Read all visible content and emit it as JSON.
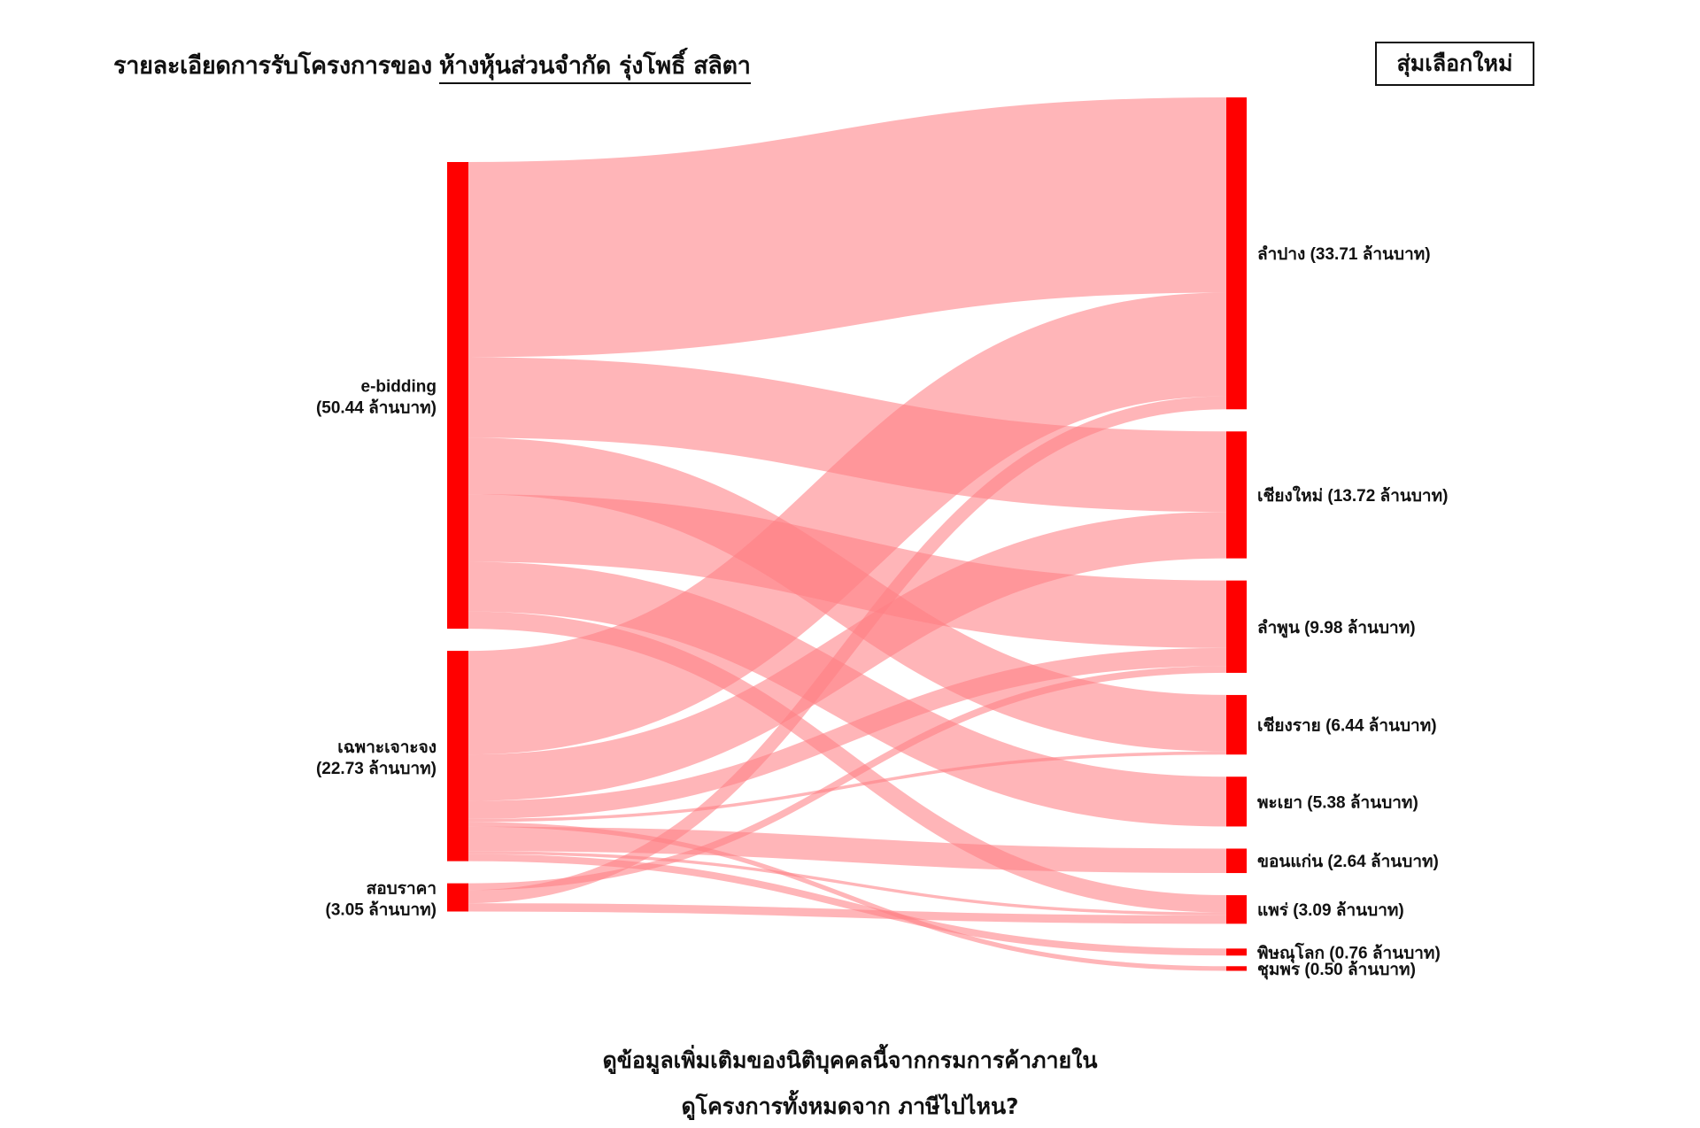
{
  "header": {
    "title_prefix": "รายละเอียดการรับโครงการของ",
    "company_name": "ห้างหุ้นส่วนจำกัด รุ่งโพธิ์ สลิตา",
    "shuffle_button": "สุ่มเลือกใหม่"
  },
  "footer": {
    "link_dbd": "ดูข้อมูลเพิ่มเติมของนิติบุคคลนี้จากกรมการค้าภายใน",
    "link_projects": "ดูโครงการทั้งหมดจาก ภาษีไปไหน?"
  },
  "colors": {
    "node": "#ff0000",
    "link": "#ff7f84"
  },
  "chart_data": {
    "type": "sankey",
    "unit": "ล้านบาท",
    "sources": [
      {
        "id": "ebid",
        "name": "e-bidding",
        "value_label": "(50.44 ล้านบาท)",
        "value": 50.44
      },
      {
        "id": "spec",
        "name": "เฉพาะเจาะจง",
        "value_label": "(22.73 ล้านบาท)",
        "value": 22.73
      },
      {
        "id": "quote",
        "name": "สอบราคา",
        "value_label": "(3.05 ล้านบาท)",
        "value": 3.05
      }
    ],
    "targets": [
      {
        "id": "lampang",
        "label": "ลำปาง (33.71 ล้านบาท)",
        "value": 33.71
      },
      {
        "id": "chiangmai",
        "label": "เชียงใหม่ (13.72 ล้านบาท)",
        "value": 13.72
      },
      {
        "id": "lamphun",
        "label": "ลำพูน (9.98 ล้านบาท)",
        "value": 9.98
      },
      {
        "id": "chiangrai",
        "label": "เชียงราย (6.44 ล้านบาท)",
        "value": 6.44
      },
      {
        "id": "phayao",
        "label": "พะเยา (5.38 ล้านบาท)",
        "value": 5.38
      },
      {
        "id": "khonkaen",
        "label": "ขอนแก่น (2.64 ล้านบาท)",
        "value": 2.64
      },
      {
        "id": "phrae",
        "label": "แพร่ (3.09 ล้านบาท)",
        "value": 3.09
      },
      {
        "id": "phitsanulok",
        "label": "พิษณุโลก (0.76 ล้านบาท)",
        "value": 0.76
      },
      {
        "id": "chumphon",
        "label": "ชุมพร (0.50 ล้านบาท)",
        "value": 0.5
      }
    ],
    "links": [
      {
        "source": "ebid",
        "target": "lampang",
        "value": 21.1
      },
      {
        "source": "ebid",
        "target": "chiangmai",
        "value": 8.7
      },
      {
        "source": "ebid",
        "target": "chiangrai",
        "value": 6.1
      },
      {
        "source": "ebid",
        "target": "lamphun",
        "value": 7.3
      },
      {
        "source": "ebid",
        "target": "phayao",
        "value": 5.38
      },
      {
        "source": "ebid",
        "target": "phrae",
        "value": 1.86
      },
      {
        "source": "spec",
        "target": "lampang",
        "value": 11.2
      },
      {
        "source": "spec",
        "target": "chiangmai",
        "value": 5.02
      },
      {
        "source": "spec",
        "target": "lamphun",
        "value": 1.94
      },
      {
        "source": "spec",
        "target": "chiangrai",
        "value": 0.34
      },
      {
        "source": "spec",
        "target": "chumphon",
        "value": 0.5
      },
      {
        "source": "spec",
        "target": "khonkaen",
        "value": 2.64
      },
      {
        "source": "spec",
        "target": "phrae",
        "value": 0.33
      },
      {
        "source": "spec",
        "target": "phitsanulok",
        "value": 0.76
      },
      {
        "source": "quote",
        "target": "lamphun",
        "value": 0.74
      },
      {
        "source": "quote",
        "target": "lampang",
        "value": 1.41
      },
      {
        "source": "quote",
        "target": "phrae",
        "value": 0.9
      }
    ]
  }
}
